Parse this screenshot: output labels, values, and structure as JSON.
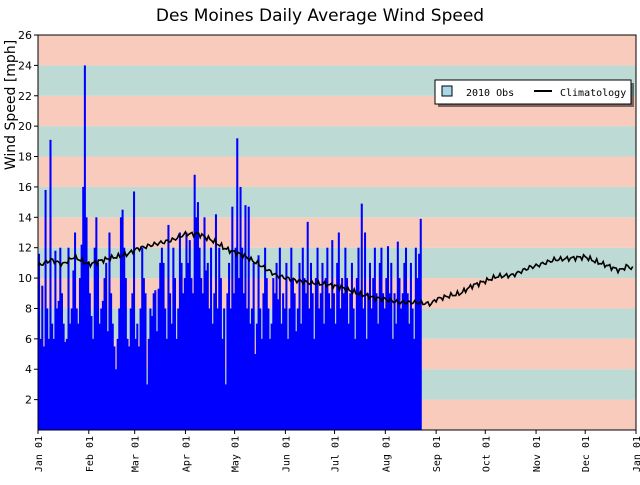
{
  "chart_data": {
    "type": "bar",
    "title": "Des Moines Daily Average Wind Speed",
    "ylabel": "Wind Speed [mph]",
    "xlabel": "",
    "ylim": [
      0,
      26
    ],
    "yticks": [
      2,
      4,
      6,
      8,
      10,
      12,
      14,
      16,
      18,
      20,
      22,
      24,
      26
    ],
    "x_range_days": [
      0,
      365
    ],
    "month_ticks": [
      {
        "label": "Jan 01",
        "day": 0
      },
      {
        "label": "Feb 01",
        "day": 31
      },
      {
        "label": "Mar 01",
        "day": 59
      },
      {
        "label": "Apr 01",
        "day": 90
      },
      {
        "label": "May 01",
        "day": 120
      },
      {
        "label": "Jun 01",
        "day": 151
      },
      {
        "label": "Jul 01",
        "day": 181
      },
      {
        "label": "Aug 01",
        "day": 212
      },
      {
        "label": "Sep 01",
        "day": 243
      },
      {
        "label": "Oct 01",
        "day": 273
      },
      {
        "label": "Nov 01",
        "day": 304
      },
      {
        "label": "Dec 01",
        "day": 334
      },
      {
        "label": "Jan 01",
        "day": 365
      }
    ],
    "background_bands": "alternating 2 mph stripes",
    "legend": {
      "placement": "top-right",
      "entries": [
        {
          "name": "2010 Obs",
          "color": "#0000ff",
          "kind": "bar"
        },
        {
          "name": "Climatology",
          "color": "#000000",
          "kind": "line"
        }
      ]
    },
    "series": [
      {
        "name": "2010 Obs",
        "color": "#0000ff",
        "start_day": 0,
        "values": [
          11.6,
          6,
          9.5,
          5.5,
          15.8,
          8,
          6,
          19.1,
          7,
          6,
          11.8,
          8,
          8.5,
          12,
          9,
          7,
          5.8,
          6,
          12,
          7,
          8,
          10.5,
          13,
          8,
          7,
          10,
          12.2,
          16,
          24,
          14,
          11,
          9,
          7.5,
          6,
          12,
          14,
          11,
          7,
          8,
          8.5,
          10,
          11,
          6.5,
          13,
          9,
          7,
          5.5,
          4,
          6,
          8,
          14,
          14.5,
          12,
          10,
          6,
          5.5,
          8,
          9,
          15.7,
          6,
          7,
          5.5,
          8,
          12,
          10,
          9,
          3,
          6,
          8,
          7.5,
          9,
          9.2,
          6.5,
          9.3,
          11,
          12,
          11,
          8,
          6,
          13.5,
          9,
          7,
          12,
          10,
          6,
          8,
          13,
          11,
          9,
          10,
          13,
          11,
          12.5,
          10,
          9,
          16.8,
          14,
          15,
          12,
          10,
          9,
          14,
          10.5,
          11,
          8,
          12,
          7,
          9,
          14.2,
          8,
          12,
          10,
          6,
          8,
          3,
          9,
          11,
          8,
          14.7,
          9,
          12,
          19.2,
          10,
          16,
          12,
          9,
          14.8,
          8,
          14.7,
          7,
          8,
          11,
          5,
          7,
          11.5,
          8,
          6,
          9,
          12,
          10,
          8,
          6,
          7,
          10,
          9,
          11,
          8.6,
          12,
          7,
          9,
          8,
          11,
          6,
          8,
          12,
          10,
          9,
          6.5,
          8,
          11,
          7,
          12,
          10,
          9,
          13.7,
          8,
          11,
          9,
          6,
          10,
          12,
          8,
          9,
          11,
          7,
          10,
          12,
          9,
          8,
          12.5,
          9,
          7,
          11,
          13,
          8,
          10,
          9,
          12,
          10,
          7,
          9,
          11,
          8,
          6,
          10,
          12,
          9,
          14.9,
          8,
          13,
          6,
          9,
          11,
          8,
          10,
          12,
          9,
          7,
          11,
          12,
          9,
          8,
          10,
          12.1,
          9,
          11,
          6,
          9,
          7,
          12.4,
          10,
          8,
          9,
          11,
          12,
          9,
          7,
          11,
          8,
          6,
          12,
          10,
          11.6,
          13.9
        ]
      },
      {
        "name": "Climatology",
        "color": "#000000",
        "knots": [
          [
            0,
            10.8
          ],
          [
            8,
            11.2
          ],
          [
            15,
            10.9
          ],
          [
            22,
            11.4
          ],
          [
            31,
            10.9
          ],
          [
            40,
            11.2
          ],
          [
            48,
            11.4
          ],
          [
            55,
            11.6
          ],
          [
            60,
            11.9
          ],
          [
            70,
            12.2
          ],
          [
            82,
            12.5
          ],
          [
            90,
            12.9
          ],
          [
            98,
            12.9
          ],
          [
            106,
            12.5
          ],
          [
            115,
            11.9
          ],
          [
            125,
            11.5
          ],
          [
            135,
            10.9
          ],
          [
            145,
            10.2
          ],
          [
            155,
            9.9
          ],
          [
            165,
            9.7
          ],
          [
            175,
            9.6
          ],
          [
            185,
            9.4
          ],
          [
            195,
            9.0
          ],
          [
            205,
            8.7
          ],
          [
            212,
            8.6
          ],
          [
            220,
            8.4
          ],
          [
            230,
            8.4
          ],
          [
            240,
            8.3
          ],
          [
            243,
            8.6
          ],
          [
            250,
            8.8
          ],
          [
            258,
            9.0
          ],
          [
            265,
            9.5
          ],
          [
            273,
            9.8
          ],
          [
            280,
            10.1
          ],
          [
            290,
            10.2
          ],
          [
            300,
            10.7
          ],
          [
            304,
            10.8
          ],
          [
            315,
            11.2
          ],
          [
            325,
            11.3
          ],
          [
            334,
            11.4
          ],
          [
            340,
            11.1
          ],
          [
            348,
            10.8
          ],
          [
            355,
            10.5
          ],
          [
            360,
            10.8
          ],
          [
            363,
            10.6
          ]
        ]
      }
    ]
  }
}
